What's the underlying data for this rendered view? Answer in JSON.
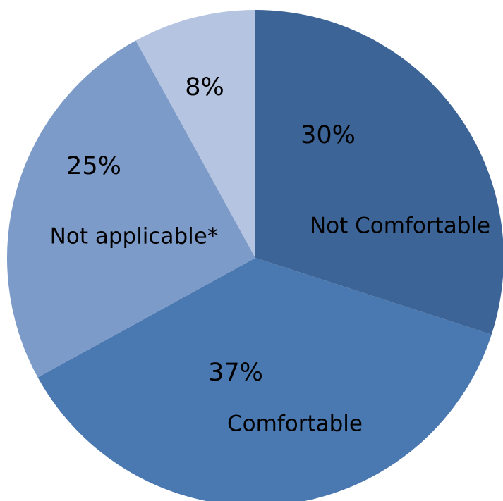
{
  "chart_data": {
    "type": "pie",
    "start": "12 o'clock",
    "direction": "clockwise",
    "slices": [
      {
        "label": "Not Comfortable",
        "value": 30,
        "value_label": "30%",
        "color": "#3d6496"
      },
      {
        "label": "Comfortable",
        "value": 37,
        "value_label": "37%",
        "color": "#4a78b0"
      },
      {
        "label": "Not applicable*",
        "value": 25,
        "value_label": "25%",
        "color": "#7d9bc8"
      },
      {
        "label": "",
        "value": 8,
        "value_label": "8%",
        "color": "#b5c4e0"
      }
    ]
  }
}
